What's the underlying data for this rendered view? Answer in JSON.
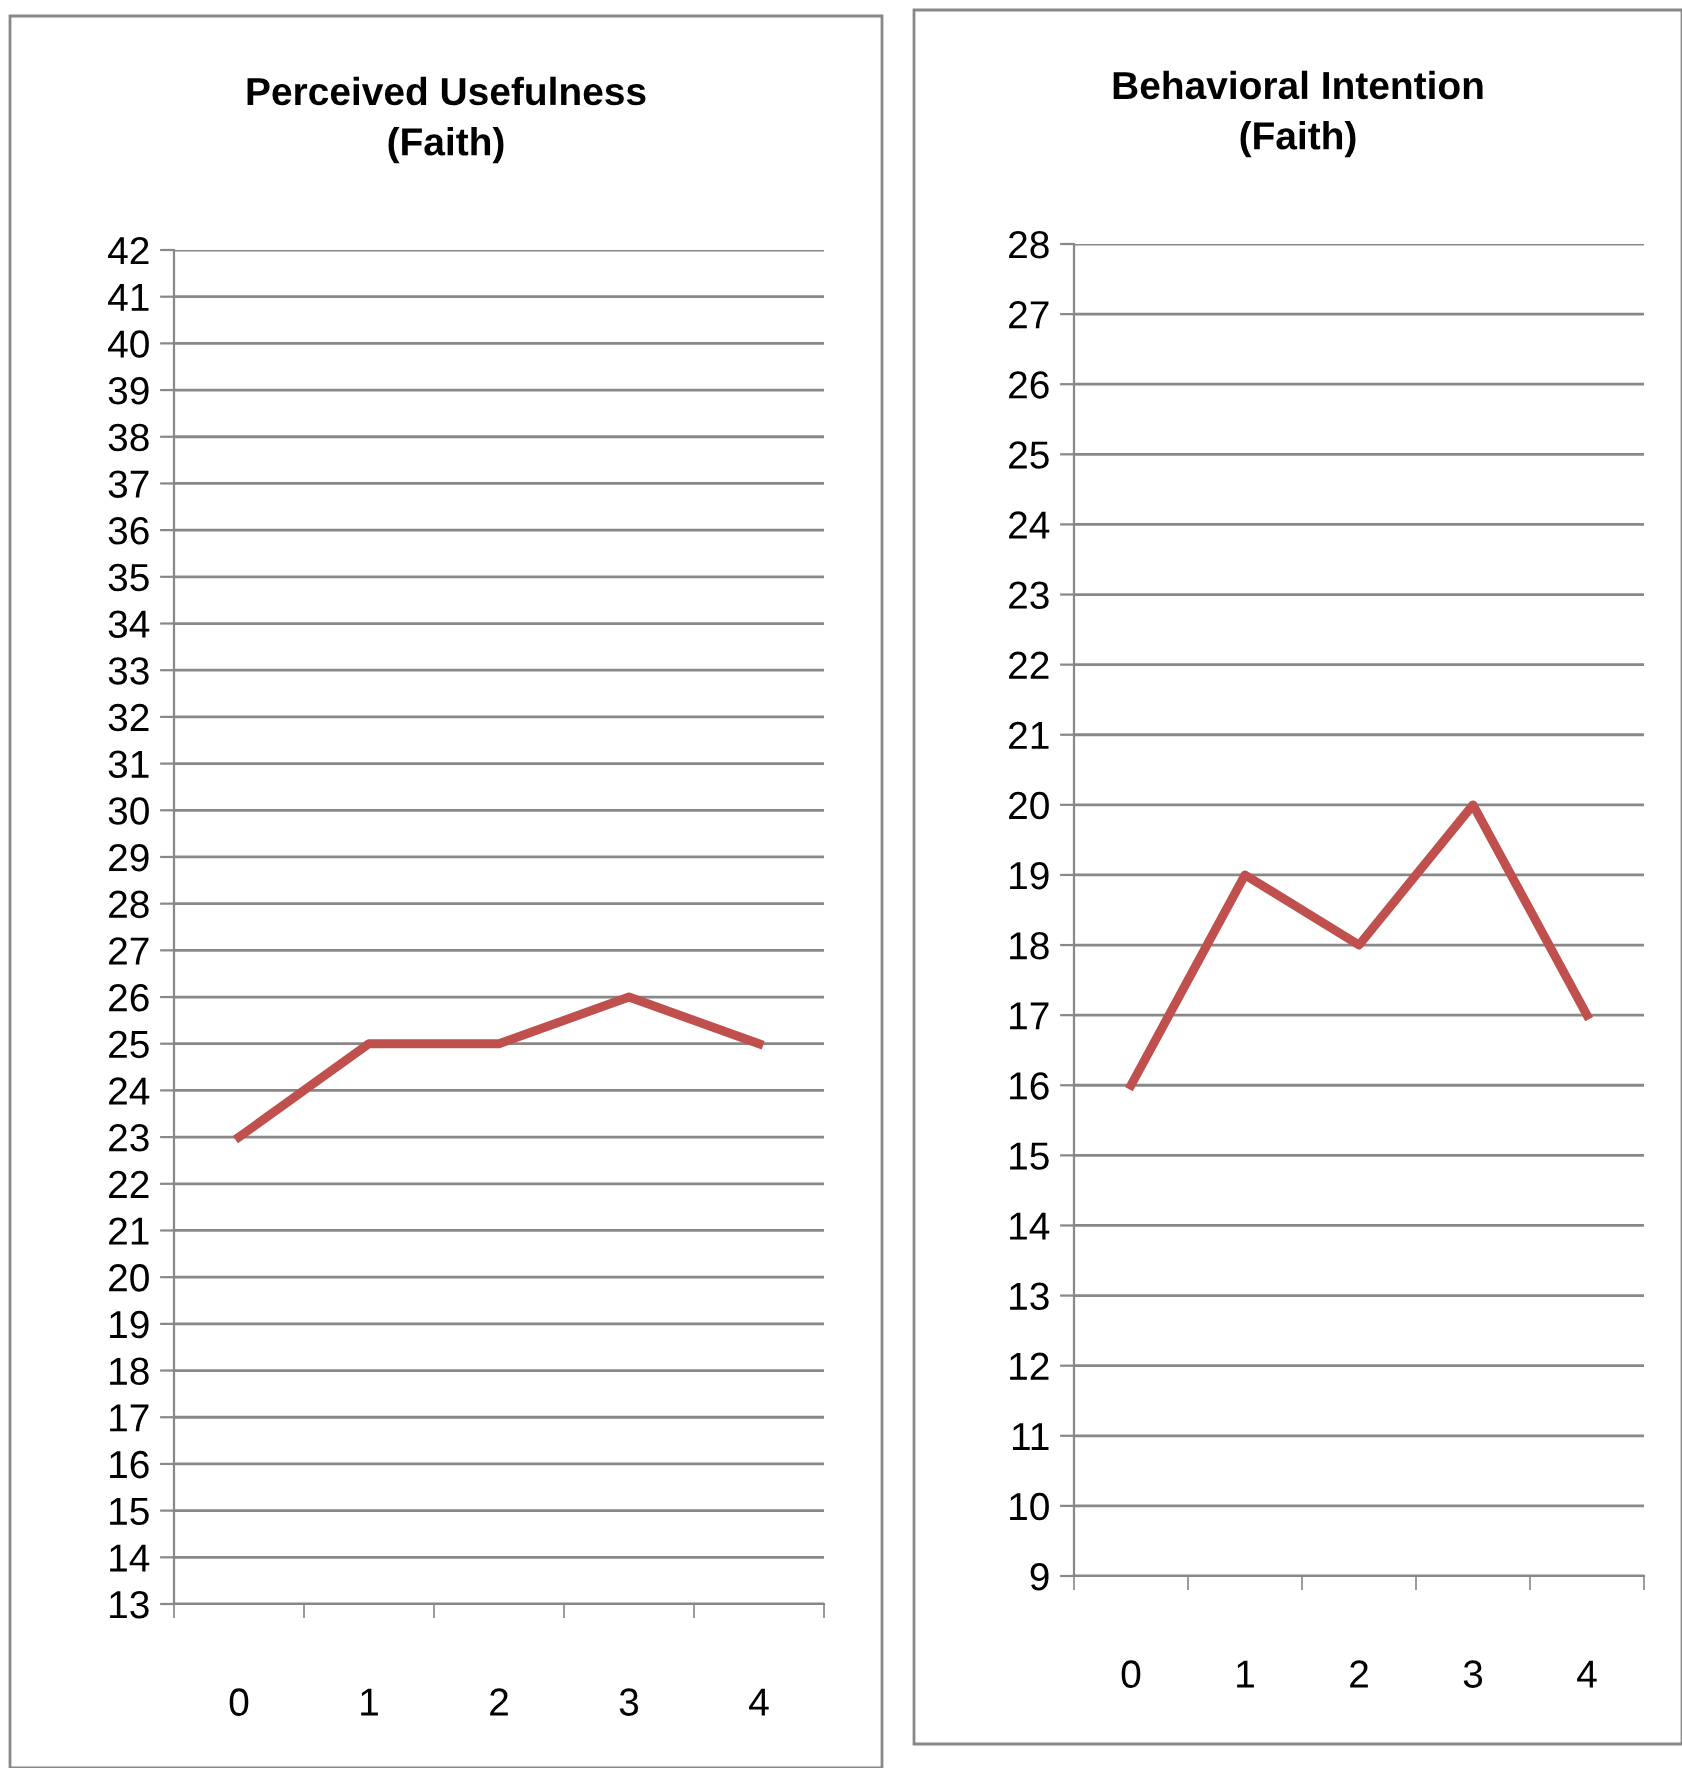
{
  "chart_data": [
    {
      "type": "line",
      "title": "Perceived Usefulness\n(Faith)",
      "categories": [
        "0",
        "1",
        "2",
        "3",
        "4"
      ],
      "series": [
        {
          "color": "#c0504d",
          "values": [
            23,
            25,
            25,
            26,
            25
          ]
        }
      ],
      "ylim": [
        13,
        42
      ],
      "yticks": [
        13,
        14,
        15,
        16,
        17,
        18,
        19,
        20,
        21,
        22,
        23,
        24,
        25,
        26,
        27,
        28,
        29,
        30,
        31,
        32,
        33,
        34,
        35,
        36,
        37,
        38,
        39,
        40,
        41,
        42
      ],
      "grid": "y",
      "legend": false,
      "marker": "none",
      "line_style": "solid"
    },
    {
      "type": "line",
      "title": "Behavioral Intention\n(Faith)",
      "categories": [
        "0",
        "1",
        "2",
        "3",
        "4"
      ],
      "series": [
        {
          "color": "#c0504d",
          "values": [
            16,
            19,
            18,
            20,
            17
          ]
        }
      ],
      "ylim": [
        9,
        28
      ],
      "yticks": [
        9,
        10,
        11,
        12,
        13,
        14,
        15,
        16,
        17,
        18,
        19,
        20,
        21,
        22,
        23,
        24,
        25,
        26,
        27,
        28
      ],
      "grid": "y",
      "legend": false,
      "marker": "none",
      "line_style": "solid"
    }
  ]
}
